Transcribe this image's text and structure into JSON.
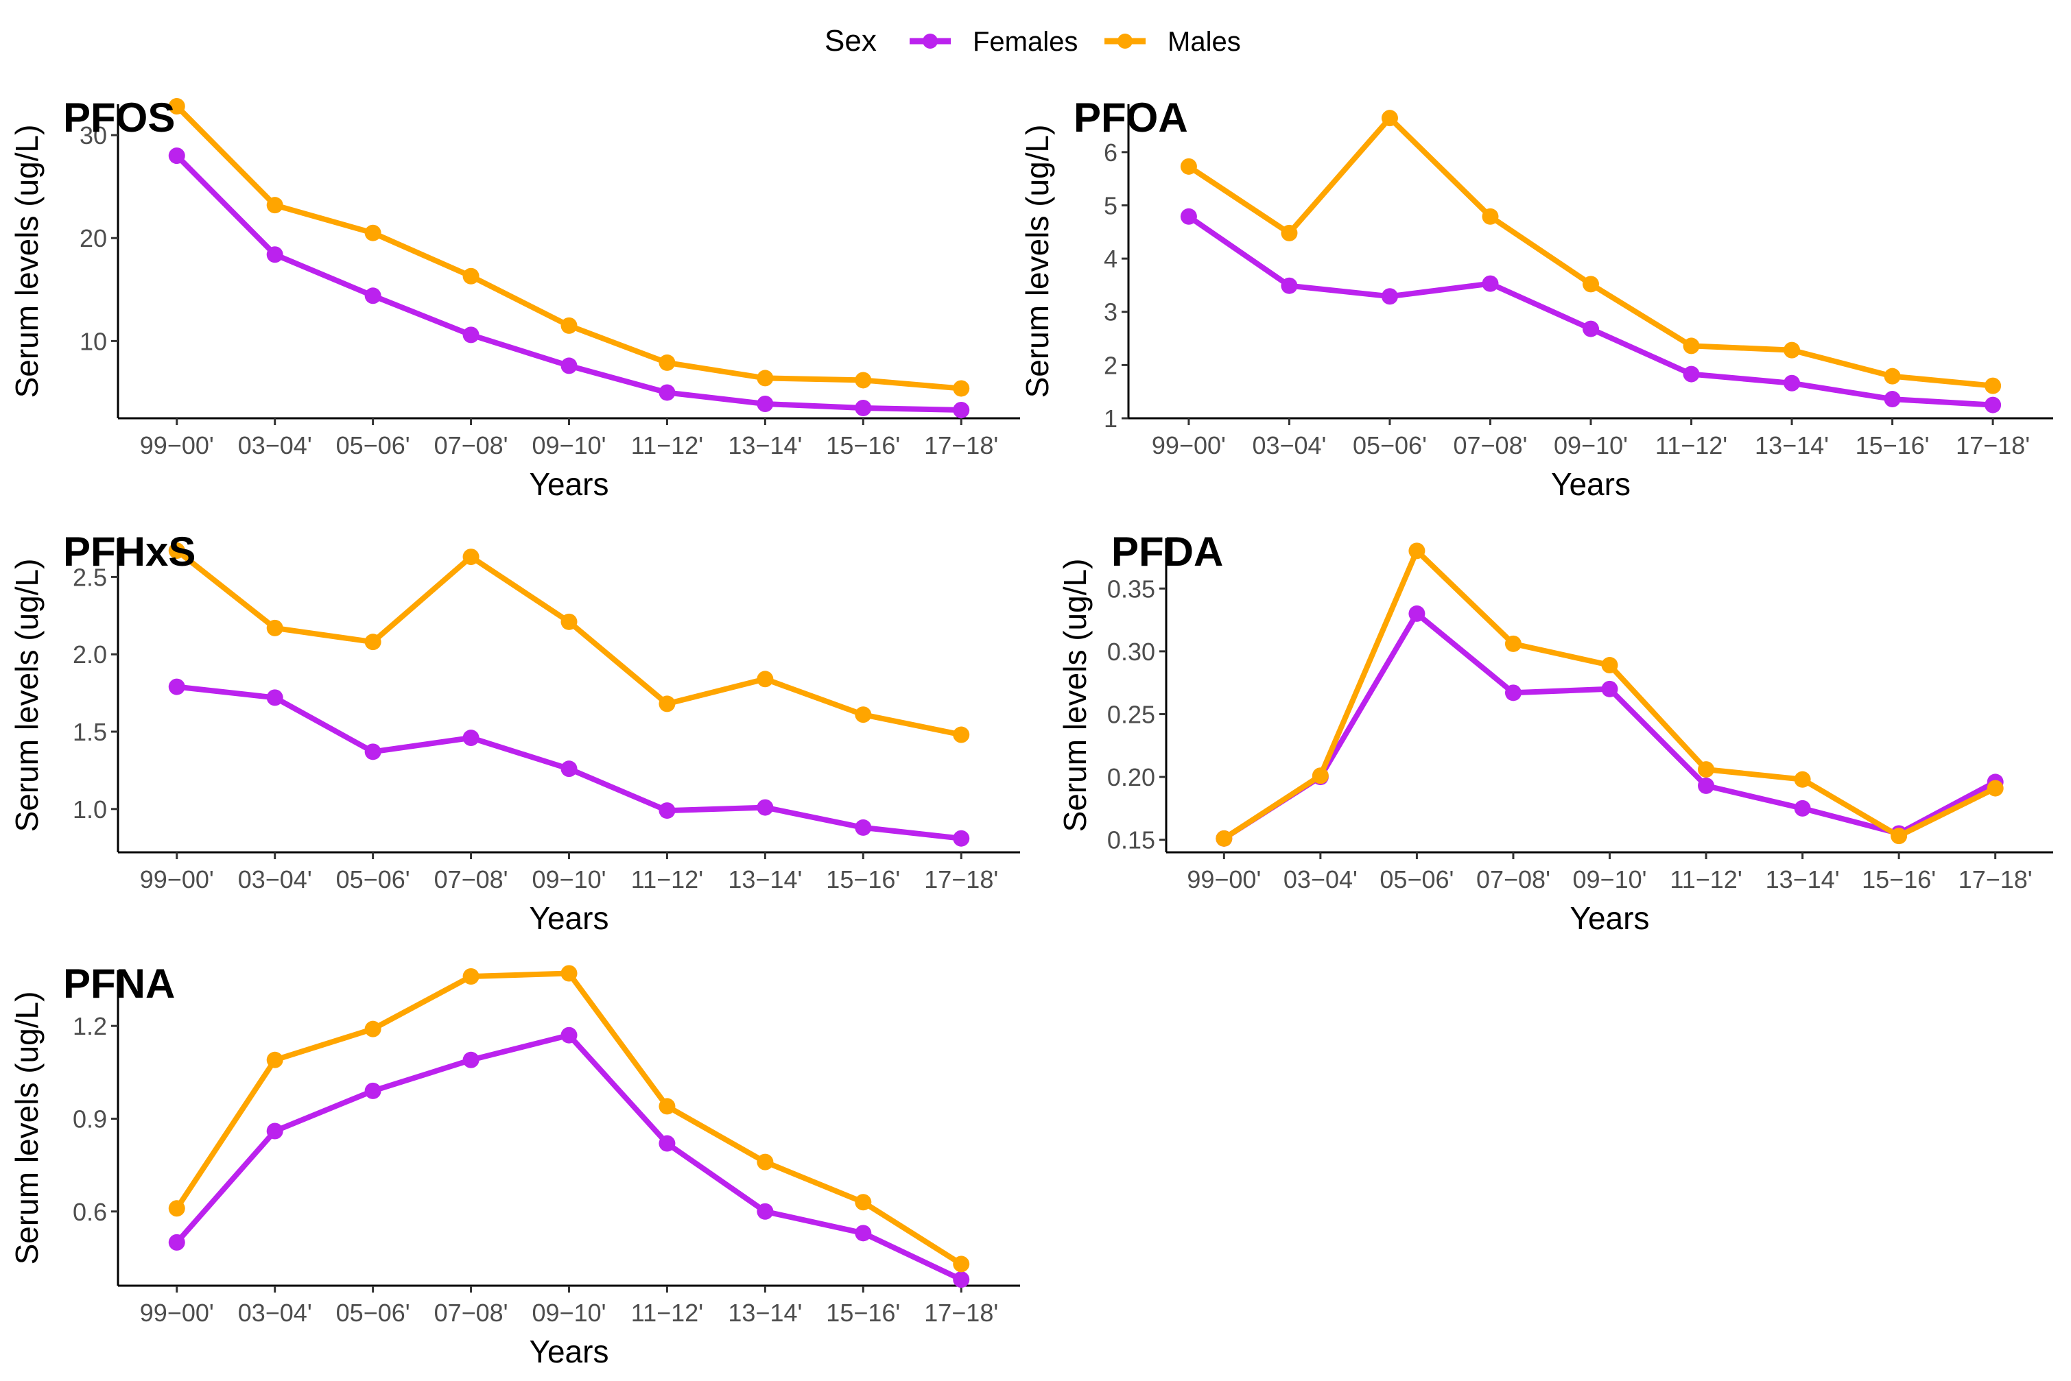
{
  "legend": {
    "title": "Sex",
    "entries": [
      {
        "name": "Females",
        "color": "#bb22ee"
      },
      {
        "name": "Males",
        "color": "#ffa500"
      }
    ]
  },
  "chart_data": [
    {
      "type": "line",
      "title": "PFOS",
      "xlabel": "Years",
      "ylabel": "Serum levels (ug/L)",
      "categories": [
        "99−00'",
        "03−04'",
        "05−06'",
        "07−08'",
        "09−10'",
        "11−12'",
        "13−14'",
        "15−16'",
        "17−18'"
      ],
      "ylim": [
        2.5,
        33
      ],
      "yticks": [
        10,
        20,
        30
      ],
      "ytick_labels": [
        "10",
        "20",
        "30"
      ],
      "series": [
        {
          "name": "Females",
          "values": [
            28.0,
            18.4,
            14.4,
            10.6,
            7.6,
            5.0,
            3.9,
            3.5,
            3.3
          ]
        },
        {
          "name": "Males",
          "values": [
            32.8,
            23.2,
            20.5,
            16.3,
            11.5,
            7.9,
            6.4,
            6.2,
            5.4
          ]
        }
      ]
    },
    {
      "type": "line",
      "title": "PFOA",
      "xlabel": "Years",
      "ylabel": "Serum levels (ug/L)",
      "categories": [
        "99−00'",
        "03−04'",
        "05−06'",
        "07−08'",
        "09−10'",
        "11−12'",
        "13−14'",
        "15−16'",
        "17−18'"
      ],
      "ylim": [
        1,
        6.9
      ],
      "yticks": [
        1,
        2,
        3,
        4,
        5,
        6
      ],
      "ytick_labels": [
        "1",
        "2",
        "3",
        "4",
        "5",
        "6"
      ],
      "series": [
        {
          "name": "Females",
          "values": [
            4.79,
            3.49,
            3.29,
            3.53,
            2.68,
            1.83,
            1.66,
            1.36,
            1.25
          ]
        },
        {
          "name": "Males",
          "values": [
            5.73,
            4.48,
            6.64,
            4.79,
            3.52,
            2.36,
            2.28,
            1.79,
            1.61
          ]
        }
      ]
    },
    {
      "type": "line",
      "title": "PFHxS",
      "xlabel": "Years",
      "ylabel": "Serum levels (ug/L)",
      "categories": [
        "99−00'",
        "03−04'",
        "05−06'",
        "07−08'",
        "09−10'",
        "11−12'",
        "13−14'",
        "15−16'",
        "17−18'"
      ],
      "ylim": [
        0.72,
        2.75
      ],
      "yticks": [
        1.0,
        1.5,
        2.0,
        2.5
      ],
      "ytick_labels": [
        "1.0",
        "1.5",
        "2.0",
        "2.5"
      ],
      "series": [
        {
          "name": "Females",
          "values": [
            1.79,
            1.72,
            1.37,
            1.46,
            1.26,
            0.99,
            1.01,
            0.88,
            0.81
          ]
        },
        {
          "name": "Males",
          "values": [
            2.67,
            2.17,
            2.08,
            2.63,
            2.21,
            1.68,
            1.84,
            1.61,
            1.48
          ]
        }
      ]
    },
    {
      "type": "line",
      "title": "PFDA",
      "xlabel": "Years",
      "ylabel": "Serum levels (ug/L)",
      "categories": [
        "99−00'",
        "03−04'",
        "05−06'",
        "07−08'",
        "09−10'",
        "11−12'",
        "13−14'",
        "15−16'",
        "17−18'"
      ],
      "ylim": [
        0.14,
        0.39
      ],
      "yticks": [
        0.15,
        0.2,
        0.25,
        0.3,
        0.35
      ],
      "ytick_labels": [
        "0.15",
        "0.20",
        "0.25",
        "0.30",
        "0.35"
      ],
      "series": [
        {
          "name": "Females",
          "values": [
            0.151,
            0.2,
            0.33,
            0.267,
            0.27,
            0.193,
            0.175,
            0.155,
            0.196
          ]
        },
        {
          "name": "Males",
          "values": [
            0.151,
            0.201,
            0.38,
            0.306,
            0.289,
            0.206,
            0.198,
            0.153,
            0.191
          ]
        }
      ]
    },
    {
      "type": "line",
      "title": "PFNA",
      "xlabel": "Years",
      "ylabel": "Serum levels (ug/L)",
      "categories": [
        "99−00'",
        "03−04'",
        "05−06'",
        "07−08'",
        "09−10'",
        "11−12'",
        "13−14'",
        "15−16'",
        "17−18'"
      ],
      "ylim": [
        0.36,
        1.38
      ],
      "yticks": [
        0.6,
        0.9,
        1.2
      ],
      "ytick_labels": [
        "0.6",
        "0.9",
        "1.2"
      ],
      "series": [
        {
          "name": "Females",
          "values": [
            0.5,
            0.86,
            0.99,
            1.09,
            1.17,
            0.82,
            0.6,
            0.53,
            0.38
          ]
        },
        {
          "name": "Males",
          "values": [
            0.61,
            1.09,
            1.19,
            1.36,
            1.37,
            0.94,
            0.76,
            0.63,
            0.43
          ]
        }
      ]
    }
  ]
}
